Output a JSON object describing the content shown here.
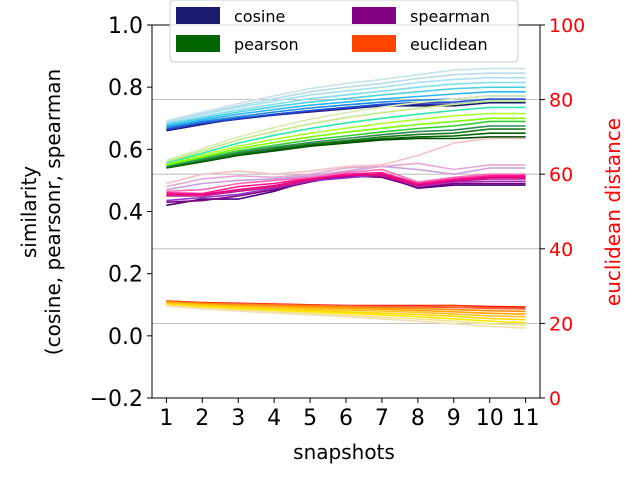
{
  "chart_data": {
    "type": "line",
    "x": [
      1,
      2,
      3,
      4,
      5,
      6,
      7,
      8,
      9,
      10,
      11
    ],
    "xticks": [
      "1",
      "2",
      "3",
      "4",
      "5",
      "6",
      "7",
      "8",
      "9",
      "10",
      "11"
    ],
    "xlabel": "snapshots",
    "ylabel_lines": [
      "similarity",
      "(cosine, pearsonr, spearman"
    ],
    "ylim": [
      -0.2,
      1.0
    ],
    "yticks": [
      "−0.2",
      "0.0",
      "0.2",
      "0.4",
      "0.6",
      "0.8",
      "1.0"
    ],
    "y2label": "euclidean distance",
    "y2lim": [
      0,
      100
    ],
    "y2ticks": [
      "0",
      "20",
      "40",
      "60",
      "80",
      "100"
    ],
    "y2_color": "#ff0000",
    "grid": "horizontal, light gray",
    "legend": {
      "placement": "top-center",
      "entries": [
        {
          "label": "cosine",
          "color": "#191970"
        },
        {
          "label": "pearson",
          "color": "#006400"
        },
        {
          "label": "spearman",
          "color": "#800080"
        },
        {
          "label": "euclidean",
          "color": "#ff4500"
        }
      ]
    },
    "series": [
      {
        "group": "cosine",
        "color": "#191970",
        "values": [
          0.66,
          0.68,
          0.7,
          0.71,
          0.72,
          0.73,
          0.74,
          0.74,
          0.74,
          0.75,
          0.75
        ]
      },
      {
        "group": "cosine",
        "color": "#2c2ca8",
        "values": [
          0.663,
          0.683,
          0.697,
          0.71,
          0.722,
          0.732,
          0.742,
          0.745,
          0.746,
          0.755,
          0.755
        ]
      },
      {
        "group": "cosine",
        "color": "#1f4fd1",
        "values": [
          0.665,
          0.685,
          0.7,
          0.713,
          0.725,
          0.735,
          0.745,
          0.75,
          0.752,
          0.762,
          0.762
        ]
      },
      {
        "group": "cosine",
        "color": "#1e88e5",
        "values": [
          0.67,
          0.69,
          0.705,
          0.72,
          0.733,
          0.743,
          0.752,
          0.758,
          0.762,
          0.772,
          0.772
        ]
      },
      {
        "group": "cosine",
        "color": "#29b6f6",
        "values": [
          0.675,
          0.695,
          0.713,
          0.728,
          0.742,
          0.752,
          0.762,
          0.77,
          0.778,
          0.785,
          0.785
        ]
      },
      {
        "group": "cosine",
        "color": "#4dd0e1",
        "values": [
          0.68,
          0.7,
          0.72,
          0.737,
          0.752,
          0.763,
          0.775,
          0.785,
          0.795,
          0.8,
          0.8
        ]
      },
      {
        "group": "cosine",
        "color": "#80deea",
        "values": [
          0.685,
          0.705,
          0.727,
          0.745,
          0.763,
          0.775,
          0.787,
          0.8,
          0.81,
          0.815,
          0.815
        ]
      },
      {
        "group": "cosine",
        "color": "#a7e0f0",
        "values": [
          0.69,
          0.712,
          0.735,
          0.755,
          0.775,
          0.788,
          0.8,
          0.815,
          0.825,
          0.83,
          0.83
        ]
      },
      {
        "group": "cosine",
        "color": "#b6dbe8",
        "values": [
          0.69,
          0.715,
          0.74,
          0.763,
          0.785,
          0.8,
          0.812,
          0.828,
          0.84,
          0.845,
          0.845
        ]
      },
      {
        "group": "cosine",
        "color": "#c9e3ec",
        "values": [
          0.692,
          0.72,
          0.747,
          0.772,
          0.795,
          0.812,
          0.825,
          0.84,
          0.855,
          0.86,
          0.86
        ]
      },
      {
        "group": "pearson",
        "color": "#004d00",
        "values": [
          0.54,
          0.56,
          0.58,
          0.595,
          0.61,
          0.62,
          0.63,
          0.635,
          0.635,
          0.64,
          0.64
        ]
      },
      {
        "group": "pearson",
        "color": "#006400",
        "values": [
          0.542,
          0.562,
          0.582,
          0.598,
          0.613,
          0.624,
          0.634,
          0.64,
          0.643,
          0.652,
          0.652
        ]
      },
      {
        "group": "pearson",
        "color": "#1e7b1e",
        "values": [
          0.544,
          0.565,
          0.586,
          0.602,
          0.617,
          0.628,
          0.64,
          0.648,
          0.652,
          0.665,
          0.665
        ]
      },
      {
        "group": "pearson",
        "color": "#2e8b57",
        "values": [
          0.546,
          0.568,
          0.59,
          0.607,
          0.622,
          0.635,
          0.647,
          0.657,
          0.662,
          0.675,
          0.675
        ]
      },
      {
        "group": "pearson",
        "color": "#32cd32",
        "values": [
          0.548,
          0.572,
          0.595,
          0.613,
          0.63,
          0.643,
          0.656,
          0.667,
          0.675,
          0.69,
          0.69
        ]
      },
      {
        "group": "pearson",
        "color": "#7cfc00",
        "values": [
          0.55,
          0.576,
          0.602,
          0.622,
          0.64,
          0.655,
          0.668,
          0.68,
          0.69,
          0.7,
          0.7
        ]
      },
      {
        "group": "pearson",
        "color": "#adff2f",
        "values": [
          0.553,
          0.582,
          0.61,
          0.632,
          0.652,
          0.668,
          0.683,
          0.696,
          0.708,
          0.715,
          0.715
        ]
      },
      {
        "group": "pearson",
        "color": "#2ee8b0",
        "values": [
          0.556,
          0.588,
          0.62,
          0.645,
          0.667,
          0.685,
          0.7,
          0.713,
          0.725,
          0.735,
          0.735
        ]
      },
      {
        "group": "pearson",
        "color": "#c5e88a",
        "values": [
          0.56,
          0.595,
          0.63,
          0.658,
          0.682,
          0.702,
          0.718,
          0.732,
          0.745,
          0.755,
          0.755
        ]
      },
      {
        "group": "pearson",
        "color": "#dbeab0",
        "values": [
          0.565,
          0.602,
          0.64,
          0.67,
          0.697,
          0.718,
          0.736,
          0.75,
          0.762,
          0.772,
          0.772
        ]
      },
      {
        "group": "spearman",
        "color": "#4b0082",
        "values": [
          0.42,
          0.44,
          0.44,
          0.465,
          0.5,
          0.51,
          0.515,
          0.475,
          0.485,
          0.485,
          0.485
        ]
      },
      {
        "group": "spearman",
        "color": "#800080",
        "values": [
          0.43,
          0.435,
          0.45,
          0.47,
          0.495,
          0.515,
          0.51,
          0.478,
          0.49,
          0.49,
          0.49
        ]
      },
      {
        "group": "spearman",
        "color": "#9932cc",
        "values": [
          0.435,
          0.445,
          0.455,
          0.475,
          0.498,
          0.508,
          0.518,
          0.48,
          0.495,
          0.497,
          0.497
        ]
      },
      {
        "group": "spearman",
        "color": "#c71585",
        "values": [
          0.45,
          0.45,
          0.465,
          0.478,
          0.5,
          0.52,
          0.515,
          0.483,
          0.498,
          0.505,
          0.505
        ]
      },
      {
        "group": "spearman",
        "color": "#e6007e",
        "values": [
          0.455,
          0.455,
          0.47,
          0.483,
          0.505,
          0.515,
          0.52,
          0.487,
          0.5,
          0.51,
          0.51
        ]
      },
      {
        "group": "spearman",
        "color": "#ff1493",
        "values": [
          0.46,
          0.458,
          0.48,
          0.49,
          0.508,
          0.52,
          0.525,
          0.49,
          0.505,
          0.515,
          0.515
        ]
      },
      {
        "group": "spearman",
        "color": "#ff69b4",
        "values": [
          0.465,
          0.47,
          0.49,
          0.5,
          0.51,
          0.525,
          0.535,
          0.495,
          0.51,
          0.52,
          0.52
        ]
      },
      {
        "group": "spearman",
        "color": "#c9a0dc",
        "values": [
          0.47,
          0.49,
          0.5,
          0.505,
          0.515,
          0.53,
          0.545,
          0.535,
          0.52,
          0.54,
          0.54
        ]
      },
      {
        "group": "spearman",
        "color": "#e6a8d7",
        "values": [
          0.48,
          0.505,
          0.515,
          0.51,
          0.52,
          0.54,
          0.545,
          0.555,
          0.535,
          0.55,
          0.55
        ]
      },
      {
        "group": "spearman",
        "color": "#f4c2c2",
        "values": [
          0.49,
          0.52,
          0.53,
          0.52,
          0.53,
          0.545,
          0.55,
          0.58,
          0.62,
          0.635,
          0.635
        ]
      },
      {
        "group": "euclidean",
        "axis": "right",
        "color": "#ff0000",
        "values": [
          26.0,
          25.6,
          25.4,
          25.2,
          25.0,
          24.8,
          24.8,
          24.8,
          24.8,
          24.5,
          24.4
        ]
      },
      {
        "group": "euclidean",
        "axis": "right",
        "color": "#ff4500",
        "values": [
          26.0,
          25.5,
          25.3,
          25.1,
          24.9,
          24.7,
          24.6,
          24.6,
          24.8,
          24.3,
          24.2
        ]
      },
      {
        "group": "euclidean",
        "axis": "right",
        "color": "#ff6347",
        "values": [
          25.9,
          25.4,
          25.2,
          25.0,
          24.8,
          24.6,
          24.5,
          24.4,
          24.3,
          24.0,
          23.9
        ]
      },
      {
        "group": "euclidean",
        "axis": "right",
        "color": "#ff8c00",
        "values": [
          25.8,
          25.3,
          25.0,
          24.8,
          24.6,
          24.4,
          24.2,
          24.0,
          23.7,
          23.4,
          23.2
        ]
      },
      {
        "group": "euclidean",
        "axis": "right",
        "color": "#ffa500",
        "values": [
          25.6,
          25.1,
          24.8,
          24.5,
          24.3,
          24.0,
          23.8,
          23.5,
          23.1,
          22.7,
          22.5
        ]
      },
      {
        "group": "euclidean",
        "axis": "right",
        "color": "#ffc125",
        "values": [
          25.4,
          24.9,
          24.5,
          24.2,
          23.9,
          23.6,
          23.3,
          23.0,
          22.5,
          22.0,
          21.8
        ]
      },
      {
        "group": "euclidean",
        "axis": "right",
        "color": "#ffd700",
        "values": [
          25.2,
          24.6,
          24.2,
          23.8,
          23.5,
          23.1,
          22.8,
          22.4,
          21.9,
          21.3,
          21.0
        ]
      },
      {
        "group": "euclidean",
        "axis": "right",
        "color": "#ffe600",
        "values": [
          25.0,
          24.4,
          23.9,
          23.5,
          23.1,
          22.7,
          22.3,
          21.8,
          21.2,
          20.6,
          20.2
        ]
      },
      {
        "group": "euclidean",
        "axis": "right",
        "color": "#f0e68c",
        "values": [
          24.8,
          24.1,
          23.6,
          23.1,
          22.7,
          22.2,
          21.7,
          21.2,
          20.6,
          19.9,
          19.5
        ]
      },
      {
        "group": "euclidean",
        "axis": "right",
        "color": "#f5deb3",
        "values": [
          24.6,
          23.9,
          23.3,
          22.8,
          22.3,
          21.8,
          21.2,
          20.6,
          19.9,
          19.2,
          18.7
        ]
      }
    ]
  }
}
